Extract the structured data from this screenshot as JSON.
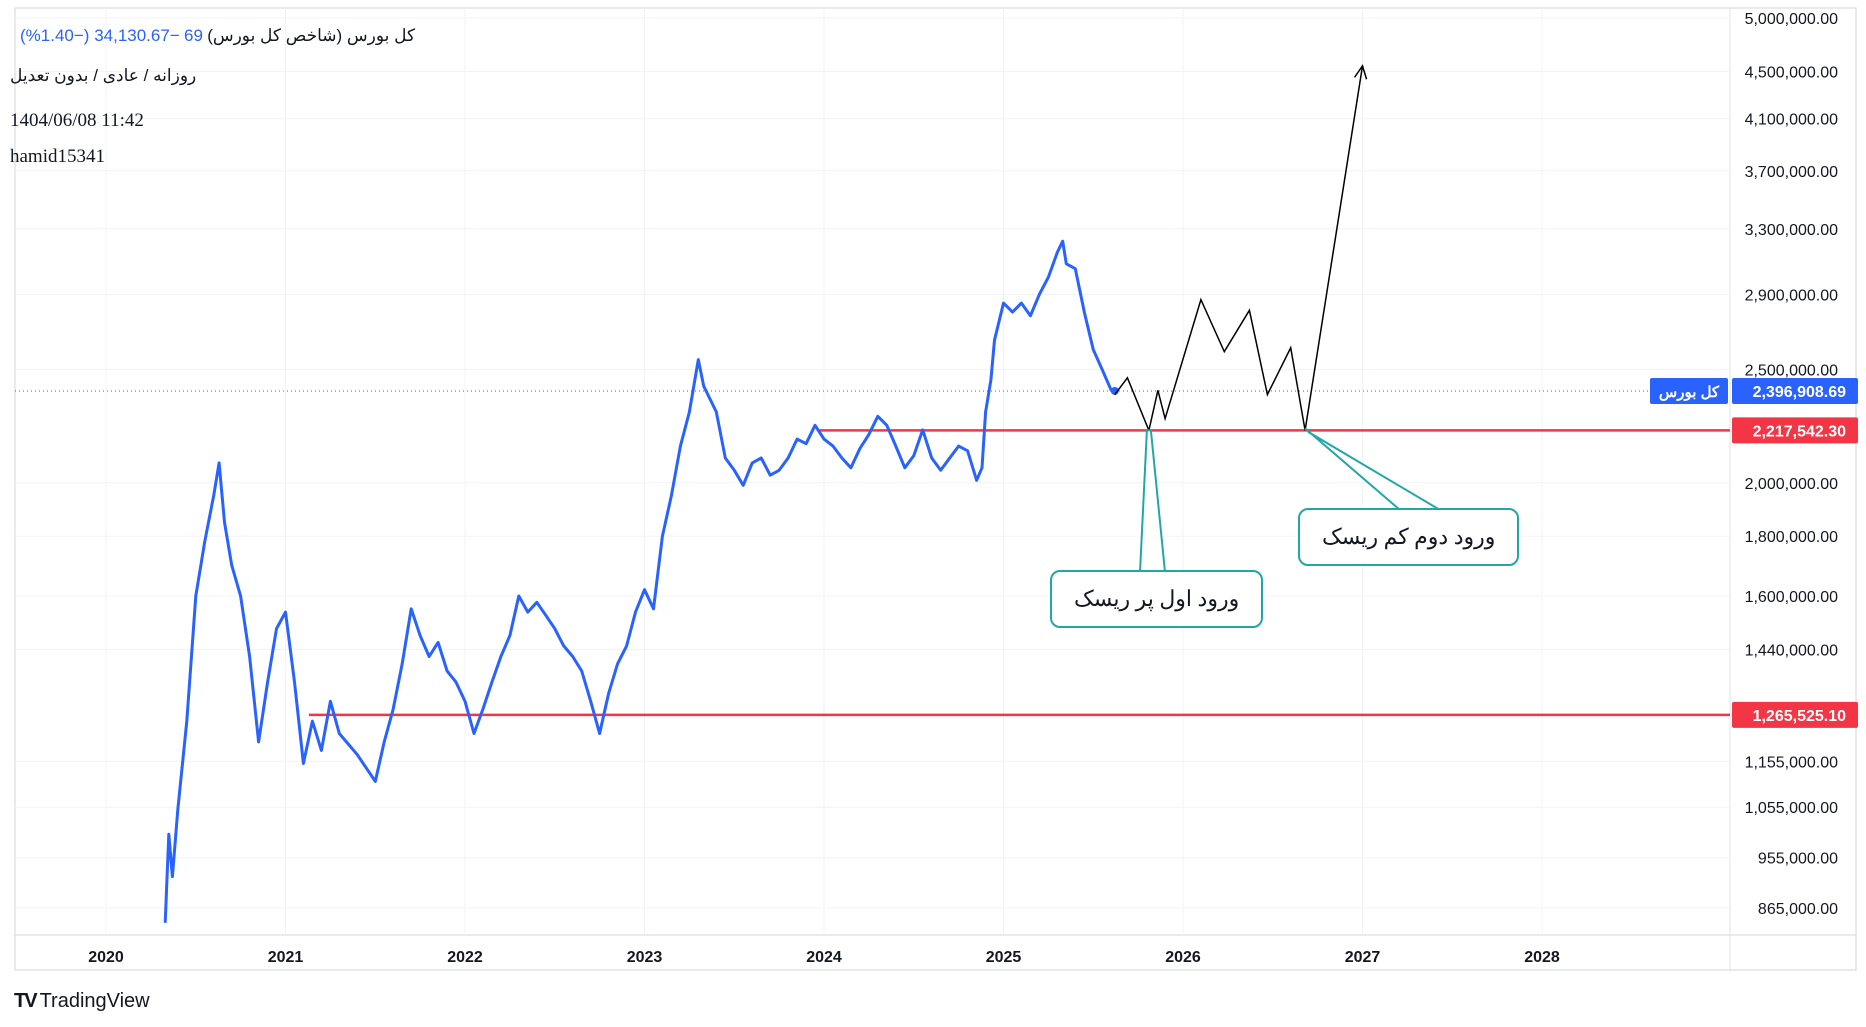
{
  "header": {
    "symbol": "کل بورس (شاخص کل بورس)",
    "last_digits": "69",
    "change": "−34,130.67 (−1.40%)",
    "interval": "روزانه / عادی / بدون تعدیل",
    "datetime": "1404/06/08 11:42",
    "author": "hamid15341"
  },
  "colors": {
    "price": "#2962ff",
    "level": "#f23645",
    "callout_border": "#22a6a6",
    "projection": "#000000"
  },
  "brand": {
    "logo_text": "TradingView",
    "logo_icon": "tradingview-icon"
  },
  "chart_data": {
    "type": "line",
    "x_axis": {
      "labels": [
        "2020",
        "2021",
        "2022",
        "2023",
        "2024",
        "2025",
        "2026",
        "2027",
        "2028"
      ]
    },
    "y_axis": {
      "scale": "log",
      "ylim": [
        820000,
        5100000
      ],
      "ticks": [
        5000000,
        4500000,
        4100000,
        3700000,
        3300000,
        2900000,
        2500000,
        2000000,
        1800000,
        1600000,
        1440000,
        1155000,
        1055000,
        955000,
        865000
      ],
      "tick_labels": [
        "5,000,000.00",
        "4,500,000.00",
        "4,100,000.00",
        "3,700,000.00",
        "3,300,000.00",
        "2,900,000.00",
        "2,500,000.00",
        "2,000,000.00",
        "1,800,000.00",
        "1,600,000.00",
        "1,440,000.00",
        "1,155,000.00",
        "1,055,000.00",
        "955,000.00",
        "865,000.00"
      ]
    },
    "series": [
      {
        "name": "کل بورس",
        "points": [
          [
            2020.33,
            840000
          ],
          [
            2020.35,
            1000000
          ],
          [
            2020.37,
            920000
          ],
          [
            2020.4,
            1050000
          ],
          [
            2020.45,
            1250000
          ],
          [
            2020.5,
            1600000
          ],
          [
            2020.55,
            1780000
          ],
          [
            2020.6,
            1950000
          ],
          [
            2020.63,
            2080000
          ],
          [
            2020.66,
            1850000
          ],
          [
            2020.7,
            1700000
          ],
          [
            2020.75,
            1600000
          ],
          [
            2020.8,
            1420000
          ],
          [
            2020.85,
            1200000
          ],
          [
            2020.9,
            1350000
          ],
          [
            2020.95,
            1500000
          ],
          [
            2021.0,
            1550000
          ],
          [
            2021.05,
            1350000
          ],
          [
            2021.1,
            1150000
          ],
          [
            2021.15,
            1250000
          ],
          [
            2021.2,
            1180000
          ],
          [
            2021.25,
            1300000
          ],
          [
            2021.3,
            1220000
          ],
          [
            2021.4,
            1170000
          ],
          [
            2021.5,
            1110000
          ],
          [
            2021.55,
            1200000
          ],
          [
            2021.6,
            1280000
          ],
          [
            2021.65,
            1400000
          ],
          [
            2021.7,
            1560000
          ],
          [
            2021.75,
            1480000
          ],
          [
            2021.8,
            1420000
          ],
          [
            2021.85,
            1460000
          ],
          [
            2021.9,
            1380000
          ],
          [
            2021.95,
            1350000
          ],
          [
            2022.0,
            1300000
          ],
          [
            2022.05,
            1220000
          ],
          [
            2022.1,
            1280000
          ],
          [
            2022.15,
            1350000
          ],
          [
            2022.2,
            1420000
          ],
          [
            2022.25,
            1480000
          ],
          [
            2022.3,
            1600000
          ],
          [
            2022.35,
            1550000
          ],
          [
            2022.4,
            1580000
          ],
          [
            2022.45,
            1540000
          ],
          [
            2022.5,
            1500000
          ],
          [
            2022.55,
            1450000
          ],
          [
            2022.6,
            1420000
          ],
          [
            2022.65,
            1380000
          ],
          [
            2022.7,
            1300000
          ],
          [
            2022.75,
            1220000
          ],
          [
            2022.8,
            1320000
          ],
          [
            2022.85,
            1400000
          ],
          [
            2022.9,
            1450000
          ],
          [
            2022.95,
            1550000
          ],
          [
            2023.0,
            1620000
          ],
          [
            2023.05,
            1560000
          ],
          [
            2023.1,
            1800000
          ],
          [
            2023.15,
            1950000
          ],
          [
            2023.2,
            2150000
          ],
          [
            2023.25,
            2300000
          ],
          [
            2023.3,
            2550000
          ],
          [
            2023.33,
            2420000
          ],
          [
            2023.4,
            2300000
          ],
          [
            2023.45,
            2100000
          ],
          [
            2023.5,
            2050000
          ],
          [
            2023.55,
            1990000
          ],
          [
            2023.6,
            2080000
          ],
          [
            2023.65,
            2100000
          ],
          [
            2023.7,
            2030000
          ],
          [
            2023.75,
            2050000
          ],
          [
            2023.8,
            2100000
          ],
          [
            2023.85,
            2180000
          ],
          [
            2023.9,
            2160000
          ],
          [
            2023.95,
            2240000
          ],
          [
            2024.0,
            2180000
          ],
          [
            2024.05,
            2150000
          ],
          [
            2024.1,
            2100000
          ],
          [
            2024.15,
            2060000
          ],
          [
            2024.2,
            2140000
          ],
          [
            2024.25,
            2200000
          ],
          [
            2024.3,
            2280000
          ],
          [
            2024.35,
            2240000
          ],
          [
            2024.4,
            2150000
          ],
          [
            2024.45,
            2060000
          ],
          [
            2024.5,
            2110000
          ],
          [
            2024.55,
            2220000
          ],
          [
            2024.6,
            2100000
          ],
          [
            2024.65,
            2050000
          ],
          [
            2024.7,
            2100000
          ],
          [
            2024.75,
            2150000
          ],
          [
            2024.8,
            2130000
          ],
          [
            2024.85,
            2010000
          ],
          [
            2024.88,
            2060000
          ],
          [
            2024.9,
            2300000
          ],
          [
            2024.93,
            2450000
          ],
          [
            2024.95,
            2650000
          ],
          [
            2025.0,
            2850000
          ],
          [
            2025.05,
            2800000
          ],
          [
            2025.1,
            2850000
          ],
          [
            2025.15,
            2780000
          ],
          [
            2025.2,
            2900000
          ],
          [
            2025.25,
            3000000
          ],
          [
            2025.3,
            3150000
          ],
          [
            2025.33,
            3220000
          ],
          [
            2025.35,
            3080000
          ],
          [
            2025.4,
            3050000
          ],
          [
            2025.45,
            2800000
          ],
          [
            2025.5,
            2600000
          ],
          [
            2025.55,
            2500000
          ],
          [
            2025.6,
            2400000
          ],
          [
            2025.62,
            2396908.69
          ]
        ]
      }
    ],
    "last_value": 2396908.69,
    "last_label": "2,396,908.69",
    "last_tag": "کل بورس",
    "levels": [
      {
        "value": 2217542.3,
        "label": "2,217,542.30",
        "x_start": 2023.97
      },
      {
        "value": 1265525.1,
        "label": "1,265,525.10",
        "x_start": 2021.13
      }
    ],
    "projection": [
      [
        2025.62,
        2380000
      ],
      [
        2025.69,
        2460000
      ],
      [
        2025.81,
        2217542
      ],
      [
        2025.86,
        2400000
      ],
      [
        2025.9,
        2270000
      ],
      [
        2026.1,
        2870000
      ],
      [
        2026.23,
        2590000
      ],
      [
        2026.37,
        2810000
      ],
      [
        2026.47,
        2380000
      ],
      [
        2026.6,
        2610000
      ],
      [
        2026.68,
        2217542
      ],
      [
        2027.0,
        4550000
      ]
    ],
    "annotations": [
      {
        "text": "ورود اول پر ریسک",
        "x": 2025.81,
        "y": 2217542
      },
      {
        "text": "ورود دوم کم ریسک",
        "x": 2026.68,
        "y": 2217542
      }
    ]
  }
}
